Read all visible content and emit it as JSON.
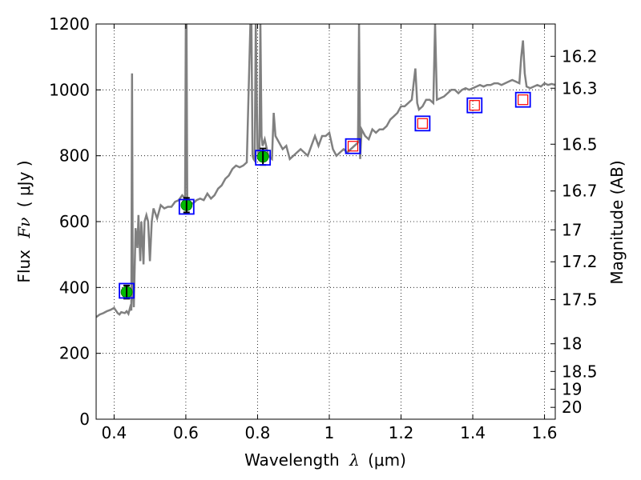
{
  "chart_data": {
    "type": "line",
    "xlabel_prefix": "Wavelength",
    "xlabel_symbol": "λ",
    "xlabel_unit": "(μm)",
    "ylabel_prefix": "Flux",
    "ylabel_symbol": "Fν",
    "ylabel_unit": "( μJy )",
    "y2label": "Magnitude (AB)",
    "xlim": [
      0.35,
      1.63
    ],
    "ylim": [
      0,
      1200
    ],
    "grid": true,
    "x_ticks": [
      0.4,
      0.6,
      0.8,
      1.0,
      1.2,
      1.4,
      1.6
    ],
    "x_tick_labels": [
      "0.4",
      "0.6",
      "0.8",
      "1",
      "1.2",
      "1.4",
      "1.6"
    ],
    "y_ticks": [
      0,
      200,
      400,
      600,
      800,
      1000,
      1200
    ],
    "y_tick_labels": [
      "0",
      "200",
      "400",
      "600",
      "800",
      "1000",
      "1200"
    ],
    "y2_ticks": [
      {
        "flux": 1102,
        "label": "16.2"
      },
      {
        "flux": 1005,
        "label": "16.3"
      },
      {
        "flux": 835,
        "label": "16.5"
      },
      {
        "flux": 693,
        "label": "16.7"
      },
      {
        "flux": 575,
        "label": "17"
      },
      {
        "flux": 478,
        "label": "17.2"
      },
      {
        "flux": 363,
        "label": "17.5"
      },
      {
        "flux": 229,
        "label": "18"
      },
      {
        "flux": 145,
        "label": "18.5"
      },
      {
        "flux": 91,
        "label": "19"
      },
      {
        "flux": 36,
        "label": "20"
      }
    ],
    "series": [
      {
        "style": "spectrum-line",
        "color": "#808080",
        "x": [
          0.35,
          0.36,
          0.37,
          0.38,
          0.39,
          0.4,
          0.41,
          0.415,
          0.42,
          0.43,
          0.435,
          0.44,
          0.445,
          0.448,
          0.45,
          0.452,
          0.455,
          0.46,
          0.465,
          0.468,
          0.47,
          0.473,
          0.476,
          0.48,
          0.482,
          0.485,
          0.49,
          0.495,
          0.5,
          0.505,
          0.51,
          0.52,
          0.53,
          0.54,
          0.55,
          0.56,
          0.57,
          0.58,
          0.59,
          0.598,
          0.6,
          0.602,
          0.604,
          0.606,
          0.61,
          0.62,
          0.63,
          0.64,
          0.65,
          0.66,
          0.67,
          0.68,
          0.69,
          0.7,
          0.71,
          0.72,
          0.73,
          0.74,
          0.75,
          0.76,
          0.77,
          0.78,
          0.783,
          0.786,
          0.789,
          0.792,
          0.795,
          0.8,
          0.805,
          0.808,
          0.811,
          0.814,
          0.82,
          0.83,
          0.84,
          0.845,
          0.85,
          0.86,
          0.87,
          0.88,
          0.89,
          0.9,
          0.91,
          0.92,
          0.93,
          0.94,
          0.95,
          0.96,
          0.97,
          0.98,
          0.99,
          1.0,
          1.01,
          1.02,
          1.03,
          1.04,
          1.05,
          1.06,
          1.07,
          1.08,
          1.083,
          1.086,
          1.09,
          1.1,
          1.11,
          1.12,
          1.13,
          1.14,
          1.15,
          1.16,
          1.17,
          1.18,
          1.19,
          1.2,
          1.21,
          1.22,
          1.23,
          1.24,
          1.245,
          1.25,
          1.26,
          1.27,
          1.28,
          1.29,
          1.295,
          1.3,
          1.31,
          1.32,
          1.33,
          1.34,
          1.35,
          1.36,
          1.37,
          1.38,
          1.39,
          1.4,
          1.41,
          1.42,
          1.43,
          1.44,
          1.45,
          1.46,
          1.47,
          1.48,
          1.49,
          1.5,
          1.51,
          1.52,
          1.53,
          1.535,
          1.54,
          1.545,
          1.55,
          1.56,
          1.57,
          1.58,
          1.59,
          1.6,
          1.61,
          1.62,
          1.63
        ],
        "y": [
          310,
          318,
          322,
          328,
          332,
          338,
          322,
          318,
          325,
          322,
          328,
          320,
          340,
          330,
          1050,
          400,
          340,
          580,
          520,
          620,
          560,
          480,
          600,
          520,
          470,
          600,
          620,
          600,
          480,
          600,
          640,
          610,
          650,
          640,
          645,
          645,
          660,
          665,
          680,
          670,
          1200,
          1200,
          670,
          665,
          660,
          655,
          665,
          670,
          665,
          685,
          670,
          680,
          700,
          710,
          730,
          740,
          760,
          770,
          765,
          770,
          780,
          1200,
          1200,
          800,
          790,
          785,
          1200,
          820,
          790,
          1200,
          860,
          830,
          850,
          800,
          790,
          930,
          860,
          840,
          820,
          830,
          790,
          800,
          810,
          820,
          810,
          800,
          830,
          860,
          830,
          860,
          860,
          870,
          820,
          800,
          810,
          820,
          810,
          820,
          830,
          840,
          1200,
          790,
          880,
          860,
          850,
          880,
          870,
          880,
          880,
          890,
          910,
          920,
          930,
          950,
          950,
          960,
          970,
          1065,
          960,
          940,
          950,
          970,
          970,
          960,
          1200,
          970,
          975,
          980,
          990,
          1000,
          1000,
          990,
          1000,
          1005,
          1000,
          1005,
          1010,
          1015,
          1010,
          1015,
          1015,
          1020,
          1020,
          1015,
          1020,
          1025,
          1030,
          1025,
          1020,
          1100,
          1150,
          1050,
          1010,
          1005,
          1010,
          1015,
          1010,
          1020,
          1015,
          1018,
          1015
        ]
      },
      {
        "style": "observed-photometry",
        "color": "#00bb00",
        "x": [
          0.435,
          0.602,
          0.815
        ],
        "y": [
          386,
          650,
          797
        ],
        "yerr": [
          20,
          22,
          25
        ]
      },
      {
        "style": "model-photometry",
        "color": "#0000ff",
        "x": [
          0.435,
          0.602,
          0.815,
          1.066,
          1.26,
          1.405,
          1.54
        ],
        "y": [
          390,
          645,
          794,
          829,
          898,
          953,
          970
        ]
      },
      {
        "style": "synthetic-photometry",
        "color": "#ff0000",
        "x": [
          1.066,
          1.26,
          1.405,
          1.54
        ],
        "y": [
          829,
          898,
          953,
          970
        ]
      }
    ]
  }
}
